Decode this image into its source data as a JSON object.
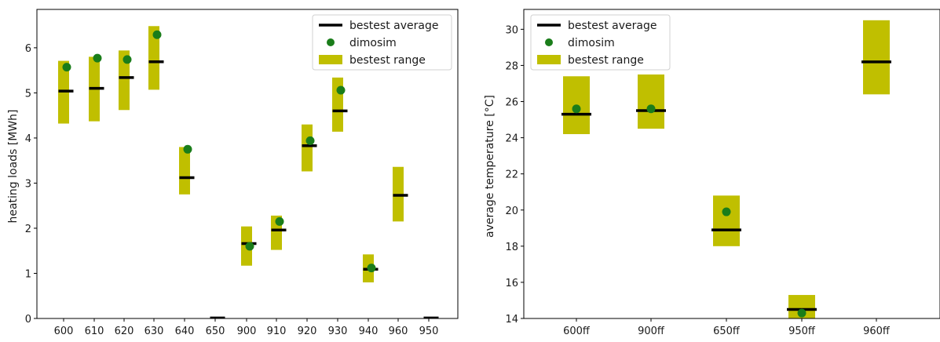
{
  "chart_data": [
    {
      "type": "bar",
      "xlabel": "",
      "ylabel": "heating loads [MWh]",
      "categories": [
        "600",
        "610",
        "620",
        "630",
        "640",
        "650",
        "900",
        "910",
        "920",
        "930",
        "940",
        "960",
        "950"
      ],
      "ylim": [
        0,
        6.85
      ],
      "yticks": [
        "0",
        "1",
        "2",
        "3",
        "4",
        "5",
        "6"
      ],
      "legend_position": "top-right",
      "legend": [
        "bestest average",
        "dimosim",
        "bestest range"
      ],
      "series": [
        {
          "name": "bestest range",
          "kind": "range",
          "low": [
            4.32,
            4.37,
            4.62,
            5.07,
            2.75,
            0.0,
            1.17,
            1.52,
            3.26,
            4.14,
            0.8,
            2.15,
            0.0
          ],
          "high": [
            5.71,
            5.8,
            5.94,
            6.48,
            3.8,
            0.0,
            2.04,
            2.28,
            4.3,
            5.34,
            1.42,
            3.36,
            0.0
          ]
        },
        {
          "name": "bestest average",
          "kind": "avg",
          "values": [
            5.04,
            5.1,
            5.34,
            5.69,
            3.12,
            0.01,
            1.66,
            1.96,
            3.83,
            4.6,
            1.09,
            2.73,
            0.01
          ]
        },
        {
          "name": "dimosim",
          "kind": "point",
          "values": [
            5.57,
            5.77,
            5.74,
            6.29,
            3.75,
            null,
            1.6,
            2.15,
            3.94,
            5.06,
            1.12,
            null,
            null
          ]
        }
      ],
      "colors": {
        "range": "#c0bf00",
        "avg": "#000000",
        "point": "#1a7d1a"
      }
    },
    {
      "type": "bar",
      "xlabel": "",
      "ylabel": "average temperature [°C]",
      "categories": [
        "600ff",
        "900ff",
        "650ff",
        "950ff",
        "960ff"
      ],
      "ylim": [
        14,
        31.1
      ],
      "yticks": [
        "14",
        "16",
        "18",
        "20",
        "22",
        "24",
        "26",
        "28",
        "30"
      ],
      "legend_position": "top-left",
      "legend": [
        "bestest average",
        "dimosim",
        "bestest range"
      ],
      "series": [
        {
          "name": "bestest range",
          "kind": "range",
          "low": [
            24.2,
            24.5,
            18.0,
            13.9,
            26.4
          ],
          "high": [
            27.4,
            27.5,
            20.8,
            15.3,
            30.5
          ]
        },
        {
          "name": "bestest average",
          "kind": "avg",
          "values": [
            25.3,
            25.5,
            18.9,
            14.5,
            28.2
          ]
        },
        {
          "name": "dimosim",
          "kind": "point",
          "values": [
            25.6,
            25.6,
            19.9,
            14.3,
            null
          ]
        }
      ],
      "colors": {
        "range": "#c0bf00",
        "avg": "#000000",
        "point": "#1a7d1a"
      }
    }
  ]
}
